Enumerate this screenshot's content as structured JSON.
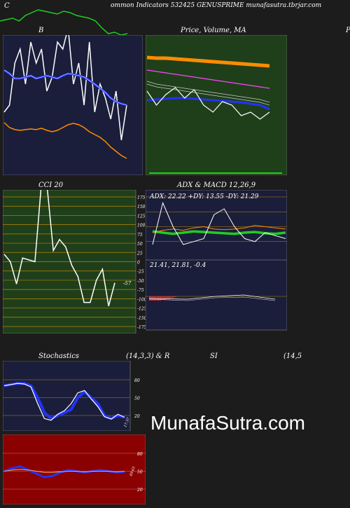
{
  "header": {
    "left_letter": "C",
    "title": "ommon  Indicators 532425 GENUSPRIME munafasutra.tbrjar.com"
  },
  "watermark": "MunafaSutra.com",
  "colors": {
    "page_bg": "#1c1c1c",
    "navy_panel": "#1b1e3a",
    "green_panel": "#1f3f1a",
    "olive_panel": "#1f3f1a",
    "red_panel": "#8b0000",
    "accent_blue": "#1a2dff",
    "accent_orange": "#ff8c00",
    "accent_green": "#22cc22"
  },
  "chart_data": [
    {
      "id": "top-strip",
      "type": "line",
      "series": [
        {
          "color": "#22cc22",
          "values": [
            30,
            28,
            26,
            30,
            22,
            18,
            14,
            16,
            18,
            20,
            16,
            18,
            22,
            24,
            26,
            30,
            40,
            48,
            46,
            50,
            48
          ]
        }
      ]
    },
    {
      "id": "bollinger",
      "type": "line",
      "title": "B",
      "series": [
        {
          "color": "#ffffff",
          "values": [
            160,
            150,
            90,
            70,
            120,
            60,
            90,
            70,
            130,
            110,
            60,
            70,
            40,
            120,
            90,
            150,
            60,
            160,
            120,
            140,
            170,
            130,
            200,
            150
          ]
        },
        {
          "color": "#2233ff",
          "values": [
            100,
            105,
            112,
            112,
            110,
            108,
            112,
            110,
            108,
            110,
            112,
            108,
            105,
            106,
            108,
            110,
            115,
            120,
            126,
            132,
            140,
            145,
            148,
            150
          ]
        },
        {
          "color": "#ff8c00",
          "values": [
            175,
            182,
            185,
            186,
            185,
            184,
            185,
            183,
            186,
            188,
            186,
            182,
            178,
            176,
            178,
            182,
            188,
            192,
            196,
            202,
            210,
            216,
            222,
            226
          ]
        }
      ]
    },
    {
      "id": "price-ma",
      "type": "line",
      "title": "Price,  Volume, MA",
      "series": [
        {
          "color": "#ff8c00",
          "values": [
            82,
            83,
            83,
            84,
            85,
            86,
            87,
            88,
            89,
            90,
            91,
            92,
            93,
            94
          ]
        },
        {
          "color": "#ff44ff",
          "values": [
            100,
            102,
            104,
            106,
            108,
            110,
            112,
            114,
            116,
            118,
            120,
            122,
            124,
            126
          ]
        },
        {
          "color": "#2233ff",
          "values": [
            143,
            142,
            141,
            140,
            140,
            141,
            142,
            143,
            144,
            145,
            146,
            148,
            150,
            156
          ]
        },
        {
          "color": "#ffffff",
          "values": [
            130,
            150,
            135,
            125,
            140,
            128,
            150,
            160,
            145,
            150,
            165,
            160,
            170,
            160
          ]
        }
      ]
    },
    {
      "id": "cci",
      "type": "line",
      "title": "CCI 20",
      "yticks": [
        175,
        150,
        125,
        100,
        75,
        50,
        25,
        0,
        -25,
        -50,
        -75,
        -100,
        -125,
        -150,
        -175
      ],
      "ylim": [
        -175,
        175
      ],
      "last_value_label": "-57",
      "series": [
        {
          "color": "#ffffff",
          "values": [
            20,
            0,
            -60,
            10,
            5,
            0,
            200,
            200,
            30,
            60,
            40,
            -10,
            -40,
            -110,
            -110,
            -50,
            -20,
            -120,
            -57
          ]
        }
      ]
    },
    {
      "id": "adx",
      "type": "line",
      "title": "ADX  & MACD 12,26,9",
      "readout": "ADX: 22.22  +DY: 13.55 -DY: 21.29",
      "yticks": [
        100,
        75,
        50,
        25
      ],
      "series": [
        {
          "color": "#22cc22",
          "values": [
            42,
            40,
            38,
            40,
            42,
            41,
            40,
            39,
            38,
            40,
            41,
            39,
            38,
            40
          ]
        },
        {
          "color": "#ff8c00",
          "values": [
            40,
            44,
            46,
            44,
            48,
            50,
            46,
            45,
            46,
            48,
            52,
            50,
            48,
            46
          ]
        },
        {
          "color": "#ffffff",
          "values": [
            20,
            90,
            50,
            20,
            25,
            30,
            70,
            80,
            50,
            30,
            25,
            40,
            35,
            30
          ]
        }
      ]
    },
    {
      "id": "macd",
      "type": "bar",
      "readout": "21.41,  21.81,  -0.4",
      "series": [
        {
          "color": "#ff3030",
          "values": [
            -5,
            -5,
            -5,
            -5,
            -5,
            -5,
            -5,
            -5,
            -4,
            -4,
            -4,
            -3,
            -3,
            -3,
            -2,
            -2,
            -1,
            -1
          ]
        }
      ]
    },
    {
      "id": "stochastics",
      "type": "line",
      "title": "Stochastics",
      "title_mid": "(14,3,3) & R",
      "yticks": [
        80,
        50,
        20
      ],
      "ylim": [
        0,
        100
      ],
      "last_value_label": "17.37",
      "series": [
        {
          "color": "#2233ff",
          "values": [
            70,
            72,
            74,
            74,
            70,
            50,
            25,
            15,
            20,
            25,
            30,
            50,
            60,
            50,
            40,
            20,
            15,
            20,
            17
          ]
        },
        {
          "color": "#ffffff",
          "values": [
            70,
            72,
            74,
            73,
            68,
            40,
            15,
            12,
            22,
            28,
            40,
            58,
            62,
            48,
            35,
            18,
            14,
            22,
            17
          ]
        }
      ]
    },
    {
      "id": "rsi",
      "type": "line",
      "title": "SI",
      "title_right": "(14,5",
      "yticks": [
        80,
        50,
        20
      ],
      "ylim": [
        0,
        100
      ],
      "last_value_label": "49.63",
      "series": [
        {
          "color": "#2233ff",
          "values": [
            50,
            55,
            58,
            52,
            46,
            40,
            42,
            48,
            52,
            50,
            48,
            50,
            52,
            50,
            48,
            49
          ]
        },
        {
          "color": "#ffaa66",
          "values": [
            50,
            52,
            53,
            52,
            50,
            48,
            48,
            49,
            50,
            50,
            49,
            50,
            50,
            50,
            49,
            50
          ]
        }
      ]
    }
  ]
}
